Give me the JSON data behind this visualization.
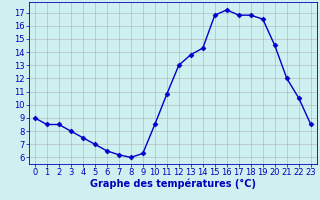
{
  "hours": [
    0,
    1,
    2,
    3,
    4,
    5,
    6,
    7,
    8,
    9,
    10,
    11,
    12,
    13,
    14,
    15,
    16,
    17,
    18,
    19,
    20,
    21,
    22,
    23
  ],
  "temperatures": [
    9.0,
    8.5,
    8.5,
    8.0,
    7.5,
    7.0,
    6.5,
    6.2,
    6.0,
    6.3,
    8.5,
    10.8,
    13.0,
    13.8,
    14.3,
    16.8,
    17.2,
    16.8,
    16.8,
    16.5,
    14.5,
    12.0,
    10.5,
    8.5
  ],
  "line_color": "#0000cc",
  "marker": "D",
  "markersize": 2.5,
  "linewidth": 1.0,
  "xlabel": "Graphe des températures (°C)",
  "xlabel_fontsize": 7,
  "ylim": [
    5.5,
    17.8
  ],
  "xlim": [
    -0.5,
    23.5
  ],
  "yticks": [
    6,
    7,
    8,
    9,
    10,
    11,
    12,
    13,
    14,
    15,
    16,
    17
  ],
  "xticks": [
    0,
    1,
    2,
    3,
    4,
    5,
    6,
    7,
    8,
    9,
    10,
    11,
    12,
    13,
    14,
    15,
    16,
    17,
    18,
    19,
    20,
    21,
    22,
    23
  ],
  "bg_color": "#cff0f0",
  "grid_color": "#b0b0b0",
  "axis_label_color": "#0000bb",
  "tick_color": "#0000bb",
  "tick_fontsize": 6,
  "spine_color": "#0000bb",
  "xlabel_fontweight": "bold"
}
